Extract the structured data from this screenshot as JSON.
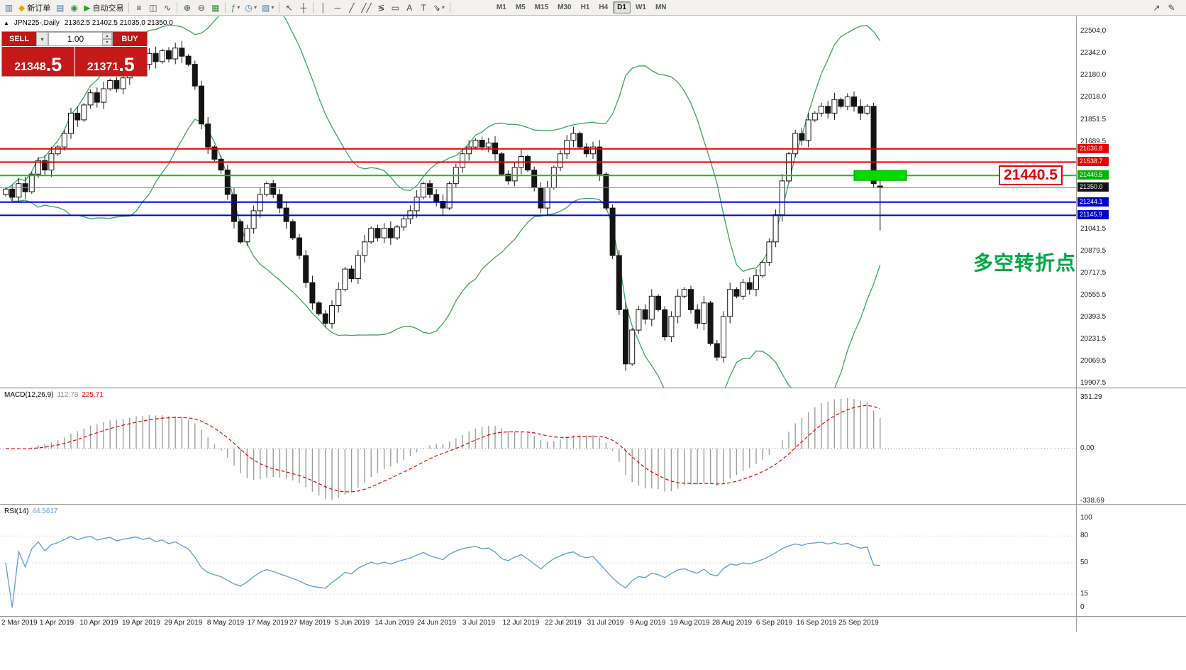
{
  "toolbar": {
    "items": [
      {
        "name": "terminal-icon",
        "glyph": "▥",
        "color": "#4a7ba6"
      },
      {
        "name": "new-order-button",
        "glyph": "◆",
        "color": "#e0a800",
        "label": "新订单"
      },
      {
        "name": "market-watch-icon",
        "glyph": "▤",
        "color": "#4a7ba6"
      },
      {
        "name": "navigator-icon",
        "glyph": "◉",
        "color": "#3f8f3f"
      },
      {
        "name": "auto-trading-button",
        "glyph": "▶",
        "color": "#2aa52a",
        "label": "自动交易"
      },
      {
        "sep": true
      },
      {
        "name": "bar-chart-icon",
        "glyph": "≡"
      },
      {
        "name": "candlestick-chart-icon",
        "glyph": "◫"
      },
      {
        "name": "line-chart-icon",
        "glyph": "∿"
      },
      {
        "sep": true
      },
      {
        "name": "zoom-in-icon",
        "glyph": "⊕"
      },
      {
        "name": "zoom-out-icon",
        "glyph": "⊖"
      },
      {
        "name": "tile-windows-icon",
        "glyph": "▦",
        "color": "#3f8f3f"
      },
      {
        "sep": true
      },
      {
        "name": "indicators-icon",
        "glyph": "ƒ",
        "color": "#3f8f3f",
        "caret": true
      },
      {
        "name": "periods-icon",
        "glyph": "◷",
        "color": "#4a7ba6",
        "caret": true
      },
      {
        "name": "templates-icon",
        "glyph": "▨",
        "color": "#4a7ba6",
        "caret": true
      },
      {
        "sep": true
      },
      {
        "name": "cursor-icon",
        "glyph": "↖"
      },
      {
        "name": "crosshair-icon",
        "glyph": "┼"
      },
      {
        "sep": true
      },
      {
        "name": "vertical-line-icon",
        "glyph": "│"
      },
      {
        "name": "horizontal-line-icon",
        "glyph": "─"
      },
      {
        "name": "trendline-icon",
        "glyph": "╱"
      },
      {
        "name": "equidistant-channel-icon",
        "glyph": "╱╱"
      },
      {
        "name": "fibonacci-icon",
        "glyph": "≶"
      },
      {
        "name": "shapes-icon",
        "glyph": "▭"
      },
      {
        "name": "text-icon",
        "glyph": "A"
      },
      {
        "name": "text-label-icon",
        "glyph": "T"
      },
      {
        "name": "arrow-tools-icon",
        "glyph": "⇘",
        "caret": true
      },
      {
        "sep": true
      }
    ],
    "timeframes": [
      "M1",
      "M5",
      "M15",
      "M30",
      "H1",
      "H4",
      "D1",
      "W1",
      "MN"
    ],
    "active_timeframe": "D1",
    "right_items": [
      {
        "name": "pointer-tool-icon",
        "glyph": "↗"
      },
      {
        "name": "pen-tool-icon",
        "glyph": "✎"
      }
    ]
  },
  "trade_panel": {
    "sell_label": "SELL",
    "buy_label": "BUY",
    "volume": "1.00",
    "dropdown_caret": "▾",
    "spin_up": "▴",
    "spin_down": "▾",
    "sell_price_main": "21348",
    "sell_price_frac": ".5",
    "buy_price_main": "21371",
    "buy_price_frac": ".5"
  },
  "chart": {
    "collapse_arrow": "▲",
    "symbol_period": "JPN225-,Daily",
    "ohlc_text": "21362.5 21402.5 21035.0 21350.0",
    "annotation": "多空转折点",
    "callout": "21440.5"
  },
  "macd_panel": {
    "name": "MACD(12,26,9)",
    "value": "112.78",
    "signal": "225.71"
  },
  "rsi_panel": {
    "name": "RSI(14)",
    "value": "44.5617"
  },
  "chart_data": {
    "type": "candlestick",
    "symbol": "JPN225-",
    "timeframe": "Daily",
    "price_top": 22614,
    "price_bottom": 19876,
    "price_axis_ticks": [
      22504.0,
      22342.0,
      22180.0,
      22018.0,
      21851.5,
      21689.5,
      21041.5,
      20879.5,
      20717.5,
      20555.5,
      20393.5,
      20231.5,
      20069.5,
      19907.5
    ],
    "x_dates": [
      "2 Mar 2019",
      "1 Apr 2019",
      "10 Apr 2019",
      "19 Apr 2019",
      "29 Apr 2019",
      "8 May 2019",
      "17 May 2019",
      "27 May 2019",
      "5 Jun 2019",
      "14 Jun 2019",
      "24 Jun 2019",
      "3 Jul 2019",
      "12 Jul 2019",
      "22 Jul 2019",
      "31 Jul 2019",
      "9 Aug 2019",
      "19 Aug 2019",
      "28 Aug 2019",
      "6 Sep 2019",
      "16 Sep 2019",
      "25 Sep 2019"
    ],
    "closes": [
      21340,
      21280,
      21380,
      21320,
      21450,
      21550,
      21480,
      21600,
      21650,
      21750,
      21900,
      21850,
      21960,
      22050,
      21980,
      22080,
      22140,
      22080,
      22160,
      22230,
      22300,
      22260,
      22340,
      22280,
      22360,
      22300,
      22380,
      22320,
      22260,
      22100,
      21820,
      21650,
      21560,
      21480,
      21300,
      21100,
      20950,
      21050,
      21180,
      21300,
      21380,
      21300,
      21200,
      21100,
      20980,
      20850,
      20650,
      20500,
      20420,
      20350,
      20480,
      20600,
      20750,
      20680,
      20850,
      20950,
      21050,
      20980,
      21050,
      20980,
      21060,
      21120,
      21180,
      21280,
      21380,
      21300,
      21250,
      21200,
      21380,
      21500,
      21600,
      21650,
      21700,
      21650,
      21680,
      21600,
      21450,
      21400,
      21500,
      21580,
      21480,
      21350,
      21200,
      21350,
      21500,
      21600,
      21700,
      21750,
      21650,
      21600,
      21650,
      21450,
      21200,
      20850,
      20450,
      20050,
      20300,
      20450,
      20380,
      20550,
      20450,
      20250,
      20400,
      20550,
      20600,
      20450,
      20350,
      20500,
      20200,
      20100,
      20400,
      20600,
      20550,
      20650,
      20600,
      20700,
      20800,
      20950,
      21150,
      21400,
      21600,
      21750,
      21700,
      21850,
      21900,
      21950,
      21900,
      22000,
      21950,
      22020,
      21950,
      21900,
      21950,
      21380,
      21350
    ],
    "last_bar_ohlc": [
      21362.5,
      21402.5,
      21035.0,
      21350.0
    ],
    "levels": [
      {
        "price": 21636.8,
        "label": "21636.8",
        "line": "#e60000",
        "tag": "#e60000",
        "width": 2
      },
      {
        "price": 21538.7,
        "label": "21538.7",
        "line": "#e60000",
        "tag": "#e60000",
        "width": 2
      },
      {
        "price": 21440.5,
        "label": "21440.5",
        "line": "#00cc00",
        "tag": "#00b300",
        "width": 2
      },
      {
        "price": 21350.0,
        "label": "21350.0",
        "line": "#8c8c8c",
        "tag": "#111111",
        "width": 1
      },
      {
        "price": 21244.1,
        "label": "21244.1",
        "line": "#0000e0",
        "tag": "#0000cc",
        "width": 2
      },
      {
        "price": 21145.9,
        "label": "21145.9",
        "line": "#0000e0",
        "tag": "#0000cc",
        "width": 2
      }
    ],
    "highlight_zone_price": 21440.5,
    "highlight_zone_color": "#00dc00",
    "indicators": {
      "bollinger": {
        "period": 20,
        "deviation": 2,
        "color": "#3aa35c"
      },
      "macd": {
        "axis": [
          "351.29",
          "0.00",
          "-338.69"
        ],
        "histogram_color": "#9c9c9c",
        "signal_color": "#e60000"
      },
      "rsi": {
        "axis": [
          "100",
          "80",
          "50",
          "15",
          "0"
        ],
        "levels": [
          80,
          50,
          15
        ],
        "color": "#5b9bd5"
      }
    }
  }
}
